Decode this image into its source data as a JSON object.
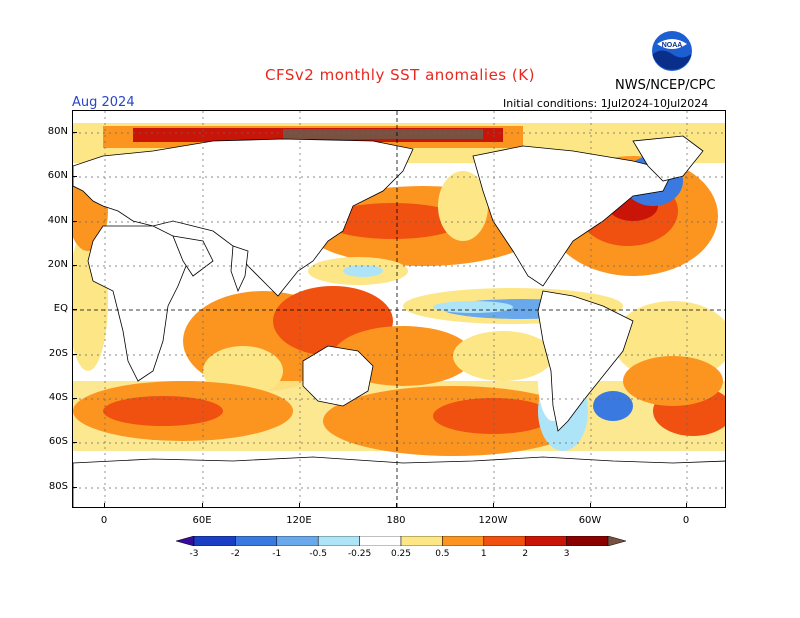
{
  "header": {
    "title": "CFSv2 monthly SST anomalies (K)",
    "org": "NWS/NCEP/CPC",
    "logo_text": "NOAA",
    "date": "Aug 2024",
    "initial_conditions": "Initial conditions: 1Jul2024-10Jul2024"
  },
  "map": {
    "lat_labels": [
      "80N",
      "60N",
      "40N",
      "20N",
      "EQ",
      "20S",
      "40S",
      "60S",
      "80S"
    ],
    "lon_labels": [
      "0",
      "60E",
      "120E",
      "180",
      "120W",
      "60W",
      "0"
    ],
    "gridlines": "dotted",
    "reference_lines": [
      "equator",
      "dateline"
    ]
  },
  "colorbar": {
    "labels": [
      "-3",
      "-2",
      "-1",
      "-0.5",
      "-0.25",
      "0.25",
      "0.5",
      "1",
      "2",
      "3"
    ],
    "colors": [
      "#3a0a9e",
      "#1a3fc4",
      "#3a7ae0",
      "#6aa8ec",
      "#aee4f8",
      "#ffffff",
      "#fde686",
      "#fb9520",
      "#f05010",
      "#c81508",
      "#8a0000",
      "#7a5040"
    ]
  }
}
